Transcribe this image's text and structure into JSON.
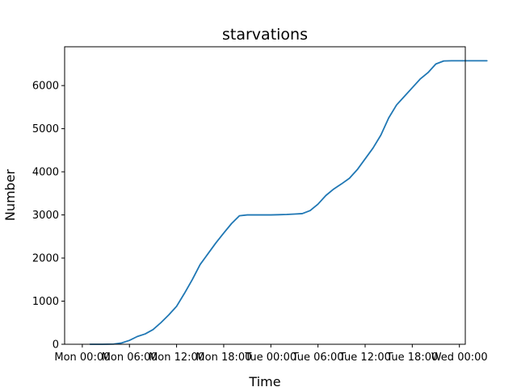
{
  "chart_data": {
    "type": "line",
    "title": "starvations",
    "xlabel": "Time",
    "ylabel": "Number",
    "x_ticks": [
      "Mon 00:00",
      "Mon 06:00",
      "Mon 12:00",
      "Mon 18:00",
      "Tue 00:00",
      "Tue 06:00",
      "Tue 12:00",
      "Tue 18:00",
      "Wed 00:00"
    ],
    "y_ticks": [
      "0",
      "1000",
      "2000",
      "3000",
      "4000",
      "5000",
      "6000"
    ],
    "xlim": [
      "Sun 21:45",
      "Wed 00:45"
    ],
    "ylim": [
      0,
      6900
    ],
    "grid": false,
    "colors": {
      "series": "#1f77b4"
    },
    "series": [
      {
        "x": [
          "Mon 01:00",
          "Mon 02:30",
          "Mon 04:00",
          "Mon 05:00",
          "Mon 06:00",
          "Mon 07:00",
          "Mon 08:00",
          "Mon 09:00",
          "Mon 10:00",
          "Mon 11:00",
          "Mon 12:00",
          "Mon 13:00",
          "Mon 14:00",
          "Mon 15:00",
          "Mon 16:00",
          "Mon 17:00",
          "Mon 18:00",
          "Mon 19:00",
          "Mon 20:00",
          "Mon 21:00",
          "Mon 22:00",
          "Mon 23:00",
          "Tue 00:00",
          "Tue 01:00",
          "Tue 02:00",
          "Tue 03:00",
          "Tue 04:00",
          "Tue 05:00",
          "Tue 06:00",
          "Tue 07:00",
          "Tue 08:00",
          "Tue 09:00",
          "Tue 10:00",
          "Tue 11:00",
          "Tue 12:00",
          "Tue 13:00",
          "Tue 14:00",
          "Tue 15:00",
          "Tue 16:00",
          "Tue 17:00",
          "Tue 18:00",
          "Tue 19:00",
          "Tue 20:00",
          "Tue 21:00",
          "Tue 22:00",
          "Tue 23:00",
          "Wed 00:00",
          "Wed 01:00",
          "Wed 02:00",
          "Wed 03:00",
          "Wed 03:30"
        ],
        "values": [
          0,
          0,
          5,
          30,
          90,
          180,
          240,
          340,
          500,
          680,
          880,
          1180,
          1500,
          1850,
          2100,
          2350,
          2580,
          2800,
          2980,
          3000,
          3000,
          3000,
          3000,
          3005,
          3010,
          3020,
          3030,
          3100,
          3250,
          3450,
          3600,
          3720,
          3850,
          4050,
          4300,
          4550,
          4850,
          5250,
          5550,
          5750,
          5950,
          6150,
          6300,
          6500,
          6570,
          6575,
          6575,
          6575,
          6575,
          6575,
          6575
        ]
      }
    ]
  }
}
